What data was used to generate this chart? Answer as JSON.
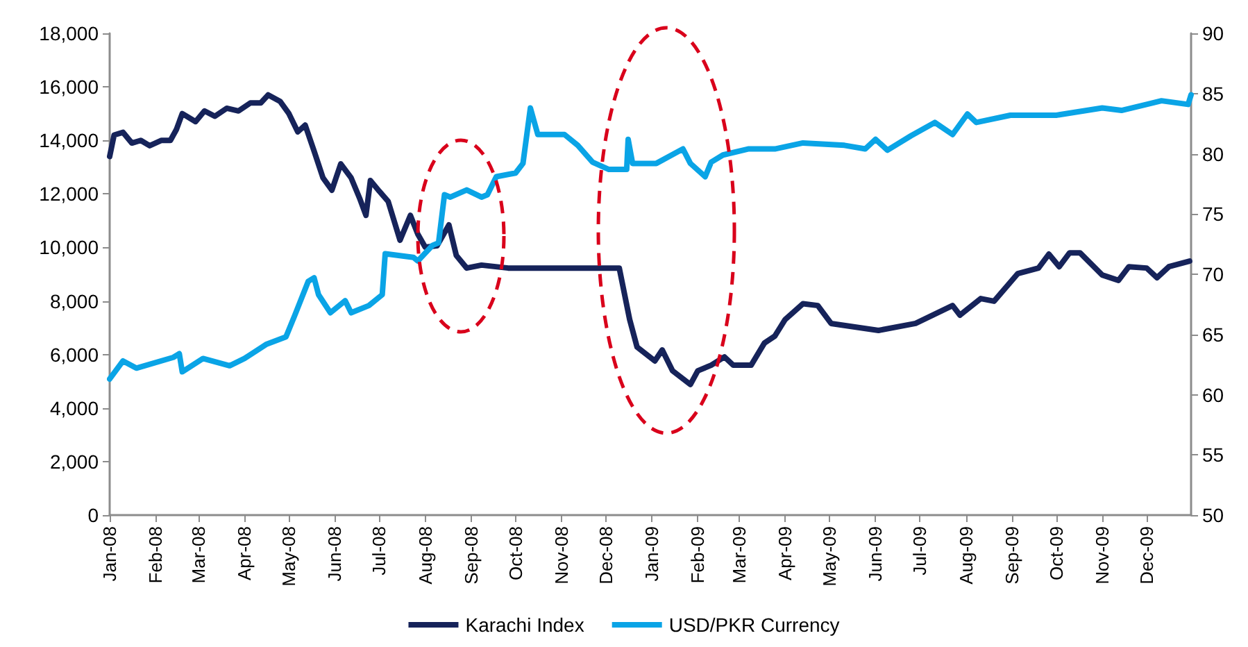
{
  "chart_data": {
    "type": "line",
    "xlim": [
      "2008-01-01",
      "2009-12-31"
    ],
    "xticks": [
      {
        "value": "2008-01-01",
        "label": "Jan-08"
      },
      {
        "value": "2008-02-01",
        "label": "Feb-08"
      },
      {
        "value": "2008-03-01",
        "label": "Mar-08"
      },
      {
        "value": "2008-04-01",
        "label": "Apr-08"
      },
      {
        "value": "2008-05-01",
        "label": "May-08"
      },
      {
        "value": "2008-06-01",
        "label": "Jun-08"
      },
      {
        "value": "2008-07-01",
        "label": "Jul-08"
      },
      {
        "value": "2008-08-01",
        "label": "Aug-08"
      },
      {
        "value": "2008-09-01",
        "label": "Sep-08"
      },
      {
        "value": "2008-10-01",
        "label": "Oct-08"
      },
      {
        "value": "2008-11-01",
        "label": "Nov-08"
      },
      {
        "value": "2008-12-01",
        "label": "Dec-08"
      },
      {
        "value": "2009-01-01",
        "label": "Jan-09"
      },
      {
        "value": "2009-02-01",
        "label": "Feb-09"
      },
      {
        "value": "2009-03-01",
        "label": "Mar-09"
      },
      {
        "value": "2009-04-01",
        "label": "Apr-09"
      },
      {
        "value": "2009-05-01",
        "label": "May-09"
      },
      {
        "value": "2009-06-01",
        "label": "Jun-09"
      },
      {
        "value": "2009-07-01",
        "label": "Jul-09"
      },
      {
        "value": "2009-08-01",
        "label": "Aug-09"
      },
      {
        "value": "2009-09-01",
        "label": "Sep-09"
      },
      {
        "value": "2009-10-01",
        "label": "Oct-09"
      },
      {
        "value": "2009-11-01",
        "label": "Nov-09"
      },
      {
        "value": "2009-12-01",
        "label": "Dec-09"
      }
    ],
    "ylim": [
      0,
      18000
    ],
    "yticks": [
      {
        "value": 0,
        "label": "0"
      },
      {
        "value": 2000,
        "label": "2,000"
      },
      {
        "value": 4000,
        "label": "4,000"
      },
      {
        "value": 6000,
        "label": "6,000"
      },
      {
        "value": 8000,
        "label": "8,000"
      },
      {
        "value": 10000,
        "label": "10,000"
      },
      {
        "value": 12000,
        "label": "12,000"
      },
      {
        "value": 14000,
        "label": "14,000"
      },
      {
        "value": 16000,
        "label": "16,000"
      },
      {
        "value": 18000,
        "label": "18,000"
      }
    ],
    "y2lim": [
      50,
      90
    ],
    "y2ticks": [
      50,
      55,
      60,
      65,
      70,
      75,
      80,
      85,
      90
    ],
    "grid": false,
    "legend": "bottom",
    "marker": "none",
    "line_style": "solid",
    "series": [
      {
        "name": "Karachi Index",
        "color": "#16235a",
        "axis": "y",
        "x": [
          "2008-01-01",
          "2008-01-04",
          "2008-01-10",
          "2008-01-16",
          "2008-01-22",
          "2008-01-28",
          "2008-02-05",
          "2008-02-11",
          "2008-02-15",
          "2008-02-19",
          "2008-02-28",
          "2008-03-05",
          "2008-03-12",
          "2008-03-20",
          "2008-03-28",
          "2008-04-05",
          "2008-04-12",
          "2008-04-17",
          "2008-04-25",
          "2008-05-01",
          "2008-05-07",
          "2008-05-12",
          "2008-05-18",
          "2008-05-24",
          "2008-05-30",
          "2008-06-05",
          "2008-06-12",
          "2008-06-18",
          "2008-06-22",
          "2008-06-25",
          "2008-07-01",
          "2008-07-07",
          "2008-07-15",
          "2008-07-22",
          "2008-07-27",
          "2008-08-01",
          "2008-08-09",
          "2008-08-17",
          "2008-08-22",
          "2008-08-29",
          "2008-09-08",
          "2008-09-26",
          "2008-12-10",
          "2008-12-17",
          "2008-12-22",
          "2009-01-03",
          "2009-01-08",
          "2009-01-15",
          "2009-01-27",
          "2009-02-01",
          "2009-02-10",
          "2009-02-19",
          "2009-02-25",
          "2009-03-09",
          "2009-03-18",
          "2009-03-25",
          "2009-04-01",
          "2009-04-13",
          "2009-04-23",
          "2009-05-02",
          "2009-06-03",
          "2009-06-28",
          "2009-07-23",
          "2009-07-28",
          "2009-08-11",
          "2009-08-20",
          "2009-09-05",
          "2009-09-19",
          "2009-09-26",
          "2009-10-03",
          "2009-10-10",
          "2009-10-17",
          "2009-11-01",
          "2009-11-12",
          "2009-11-19",
          "2009-12-01",
          "2009-12-08",
          "2009-12-16",
          "2009-12-30"
        ],
        "values": [
          13400,
          14200,
          14300,
          13900,
          14000,
          13800,
          14000,
          14000,
          14400,
          15000,
          14700,
          15100,
          14900,
          15200,
          15100,
          15400,
          15400,
          15700,
          15460,
          15000,
          14320,
          14570,
          13600,
          12600,
          12140,
          13120,
          12600,
          11800,
          11200,
          12500,
          12100,
          11720,
          10270,
          11200,
          10500,
          10010,
          10060,
          10840,
          9700,
          9230,
          9340,
          9230,
          9230,
          7310,
          6280,
          5760,
          6170,
          5390,
          4880,
          5390,
          5600,
          5910,
          5600,
          5600,
          6430,
          6690,
          7310,
          7900,
          7830,
          7160,
          6900,
          7160,
          7830,
          7470,
          8090,
          7990,
          9020,
          9230,
          9750,
          9280,
          9800,
          9800,
          8970,
          8770,
          9280,
          9230,
          8870,
          9280,
          9490
        ]
      },
      {
        "name": "USD/PKR Currency",
        "color": "#0aa4e6",
        "axis": "y2",
        "x": [
          "2008-01-01",
          "2008-01-10",
          "2008-01-19",
          "2008-02-13",
          "2008-02-17",
          "2008-02-19",
          "2008-03-04",
          "2008-03-22",
          "2008-04-01",
          "2008-04-16",
          "2008-04-29",
          "2008-05-05",
          "2008-05-14",
          "2008-05-18",
          "2008-05-21",
          "2008-05-29",
          "2008-06-08",
          "2008-06-12",
          "2008-06-24",
          "2008-07-03",
          "2008-07-05",
          "2008-07-24",
          "2008-07-27",
          "2008-08-06",
          "2008-08-10",
          "2008-08-14",
          "2008-08-18",
          "2008-08-29",
          "2008-09-08",
          "2008-09-12",
          "2008-09-18",
          "2008-10-01",
          "2008-10-06",
          "2008-10-11",
          "2008-10-16",
          "2008-11-03",
          "2008-11-12",
          "2008-11-22",
          "2008-12-03",
          "2008-12-15",
          "2008-12-16",
          "2008-12-19",
          "2009-01-04",
          "2009-01-22",
          "2009-01-27",
          "2009-02-06",
          "2009-02-10",
          "2009-02-18",
          "2009-03-07",
          "2009-03-25",
          "2009-04-13",
          "2009-05-11",
          "2009-05-25",
          "2009-06-01",
          "2009-06-09",
          "2009-06-25",
          "2009-07-11",
          "2009-07-23",
          "2009-08-02",
          "2009-08-08",
          "2009-08-31",
          "2009-10-01",
          "2009-11-01",
          "2009-11-14",
          "2009-12-01",
          "2009-12-11",
          "2009-12-29",
          "2009-12-31"
        ],
        "values": [
          61.3,
          62.8,
          62.2,
          63.1,
          63.4,
          61.9,
          63.0,
          62.4,
          63.0,
          64.2,
          64.8,
          66.6,
          69.4,
          69.7,
          68.3,
          66.8,
          67.8,
          66.8,
          67.4,
          68.3,
          71.7,
          71.4,
          71.1,
          72.4,
          72.6,
          76.6,
          76.4,
          77.0,
          76.4,
          76.6,
          78.1,
          78.4,
          79.2,
          83.8,
          81.6,
          81.6,
          80.7,
          79.3,
          78.7,
          78.7,
          81.2,
          79.2,
          79.2,
          80.4,
          79.2,
          78.1,
          79.3,
          79.9,
          80.4,
          80.4,
          80.9,
          80.7,
          80.4,
          81.2,
          80.3,
          81.5,
          82.6,
          81.6,
          83.3,
          82.6,
          83.2,
          83.2,
          83.8,
          83.6,
          84.1,
          84.4,
          84.1,
          84.9
        ]
      }
    ]
  }
}
